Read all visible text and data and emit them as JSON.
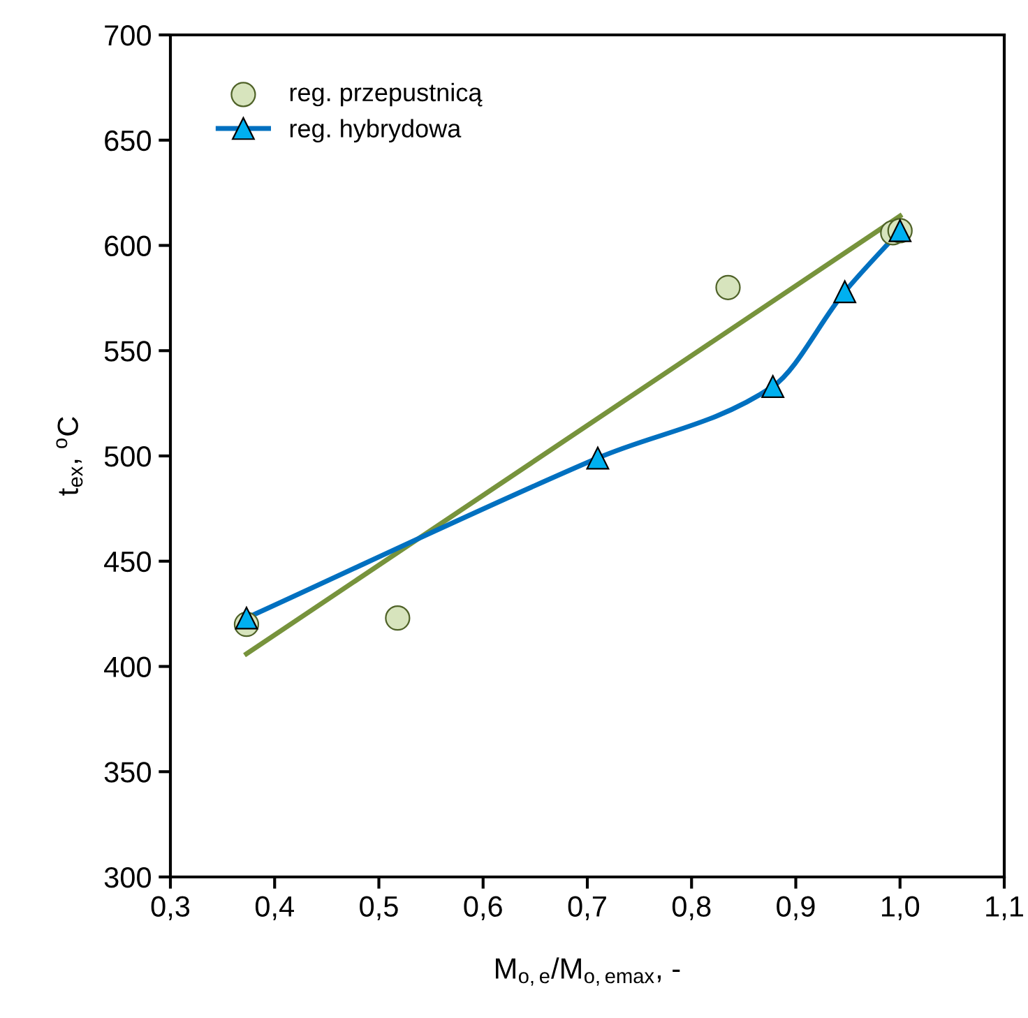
{
  "chart_data": {
    "type": "line",
    "xlabel": "M$_{o,e}$/M$_{o,emax}$, -",
    "ylabel": "t$_{ex}$, $^{o}$C",
    "xlim": [
      0.3,
      1.1
    ],
    "xticks": [
      {
        "value": 0.3,
        "label": "0,3"
      },
      {
        "value": 0.4,
        "label": "0,4"
      },
      {
        "value": 0.5,
        "label": "0,5"
      },
      {
        "value": 0.6,
        "label": "0,6"
      },
      {
        "value": 0.7,
        "label": "0,7"
      },
      {
        "value": 0.8,
        "label": "0,8"
      },
      {
        "value": 0.9,
        "label": "0,9"
      },
      {
        "value": 1.0,
        "label": "1,0"
      },
      {
        "value": 1.1,
        "label": "1,1"
      }
    ],
    "ylim": [
      300,
      700
    ],
    "yticks": [
      300,
      350,
      400,
      450,
      500,
      550,
      600,
      650,
      700
    ],
    "grid": false,
    "legend": "top left",
    "series": [
      {
        "name": "reg. przepustnicą",
        "type": "scatter",
        "marker": "circle",
        "color": "#d7e4bd",
        "x": [
          0.373,
          0.518,
          0.835,
          0.993,
          1.0
        ],
        "values": [
          420,
          423,
          580,
          606,
          607
        ]
      },
      {
        "name": "reg. hybrydowa",
        "type": "line",
        "marker": "triangle",
        "color": "#0070c0",
        "x": [
          0.373,
          0.71,
          0.878,
          0.947,
          1.0
        ],
        "values": [
          423,
          499,
          533,
          578,
          607
        ]
      },
      {
        "marker": "none",
        "color": "#77933c",
        "x": [
          0.373,
          1.0
        ],
        "values": [
          406,
          614
        ]
      }
    ]
  }
}
